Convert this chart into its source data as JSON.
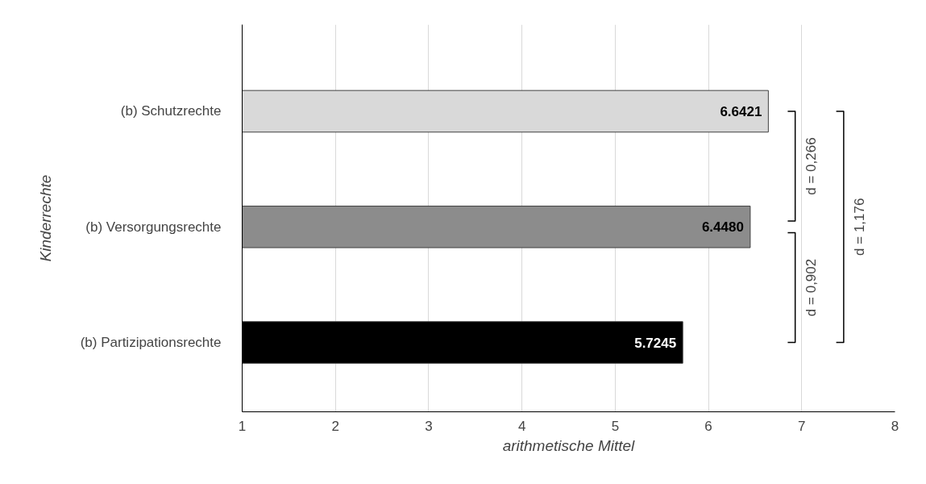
{
  "chart_data": {
    "type": "bar",
    "orientation": "horizontal",
    "categories": [
      "(b) Schutzrechte",
      "(b) Versorgungsrechte",
      "(b) Partizipationsrechte"
    ],
    "values": [
      6.6421,
      6.448,
      5.7245
    ],
    "colors": [
      "#d9d9d9",
      "#8c8c8c",
      "#000000"
    ],
    "value_labels": [
      "6.6421",
      "6.4480",
      "5.7245"
    ],
    "xlim": [
      1,
      8
    ],
    "xticks": [
      1,
      2,
      3,
      4,
      5,
      6,
      7,
      8
    ],
    "xlabel": "arithmetische Mittel",
    "ylabel": "Kinderrechte",
    "grid": "x",
    "annotations": [
      "d = 0,266",
      "d = 0,902",
      "d = 1,176"
    ]
  }
}
